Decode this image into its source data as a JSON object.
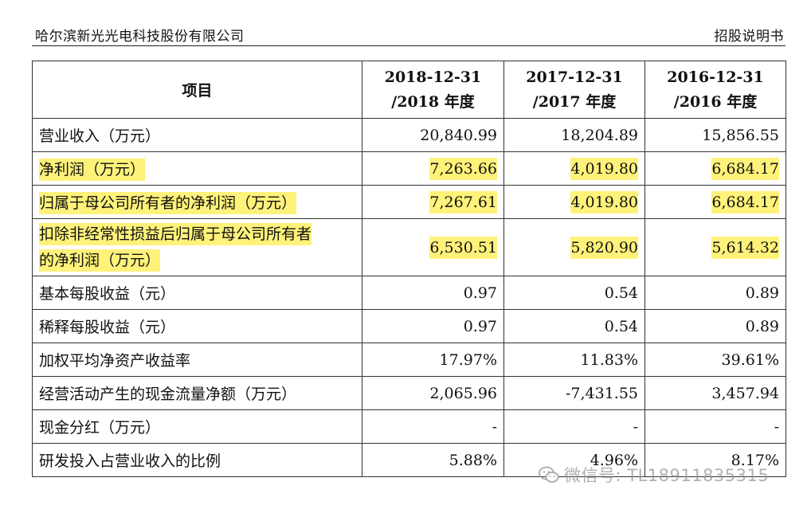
{
  "header": {
    "company": "哈尔滨新光光电科技股份有限公司",
    "doc_type": "招股说明书"
  },
  "table": {
    "columns": {
      "item": "项目",
      "y2018_a": "2018-12-31",
      "y2018_b": "/2018 年度",
      "y2017_a": "2017-12-31",
      "y2017_b": "/2017 年度",
      "y2016_a": "2016-12-31",
      "y2016_b": "/2016 年度"
    },
    "rows": [
      {
        "label": "营业收入（万元）",
        "v2018": "20,840.99",
        "v2017": "18,204.89",
        "v2016": "15,856.55"
      },
      {
        "label": "净利润（万元）",
        "v2018": "7,263.66",
        "v2017": "4,019.80",
        "v2016": "6,684.17"
      },
      {
        "label": "归属于母公司所有者的净利润（万元）",
        "v2018": "7,267.61",
        "v2017": "4,019.80",
        "v2016": "6,684.17"
      },
      {
        "label_line1": "扣除非经常性损益后归属于母公司所有者",
        "label_line2": "的净利润（万元）",
        "v2018": "6,530.51",
        "v2017": "5,820.90",
        "v2016": "5,614.32"
      },
      {
        "label": "基本每股收益（元）",
        "v2018": "0.97",
        "v2017": "0.54",
        "v2016": "0.89"
      },
      {
        "label": "稀释每股收益（元）",
        "v2018": "0.97",
        "v2017": "0.54",
        "v2016": "0.89"
      },
      {
        "label": "加权平均净资产收益率",
        "v2018": "17.97%",
        "v2017": "11.83%",
        "v2016": "39.61%"
      },
      {
        "label": "经营活动产生的现金流量净额（万元）",
        "v2018": "2,065.96",
        "v2017": "-7,431.55",
        "v2016": "3,457.94"
      },
      {
        "label": "现金分红（万元）",
        "v2018": "-",
        "v2017": "-",
        "v2016": "-"
      },
      {
        "label": "研发投入占营业收入的比例",
        "v2018": "5.88%",
        "v2017": "4.96%",
        "v2016": "8.17%"
      }
    ]
  },
  "watermark": {
    "text": "微信号: TL18911835315",
    "icon": "wechat-icon"
  },
  "colors": {
    "highlight": "#fff27a"
  }
}
